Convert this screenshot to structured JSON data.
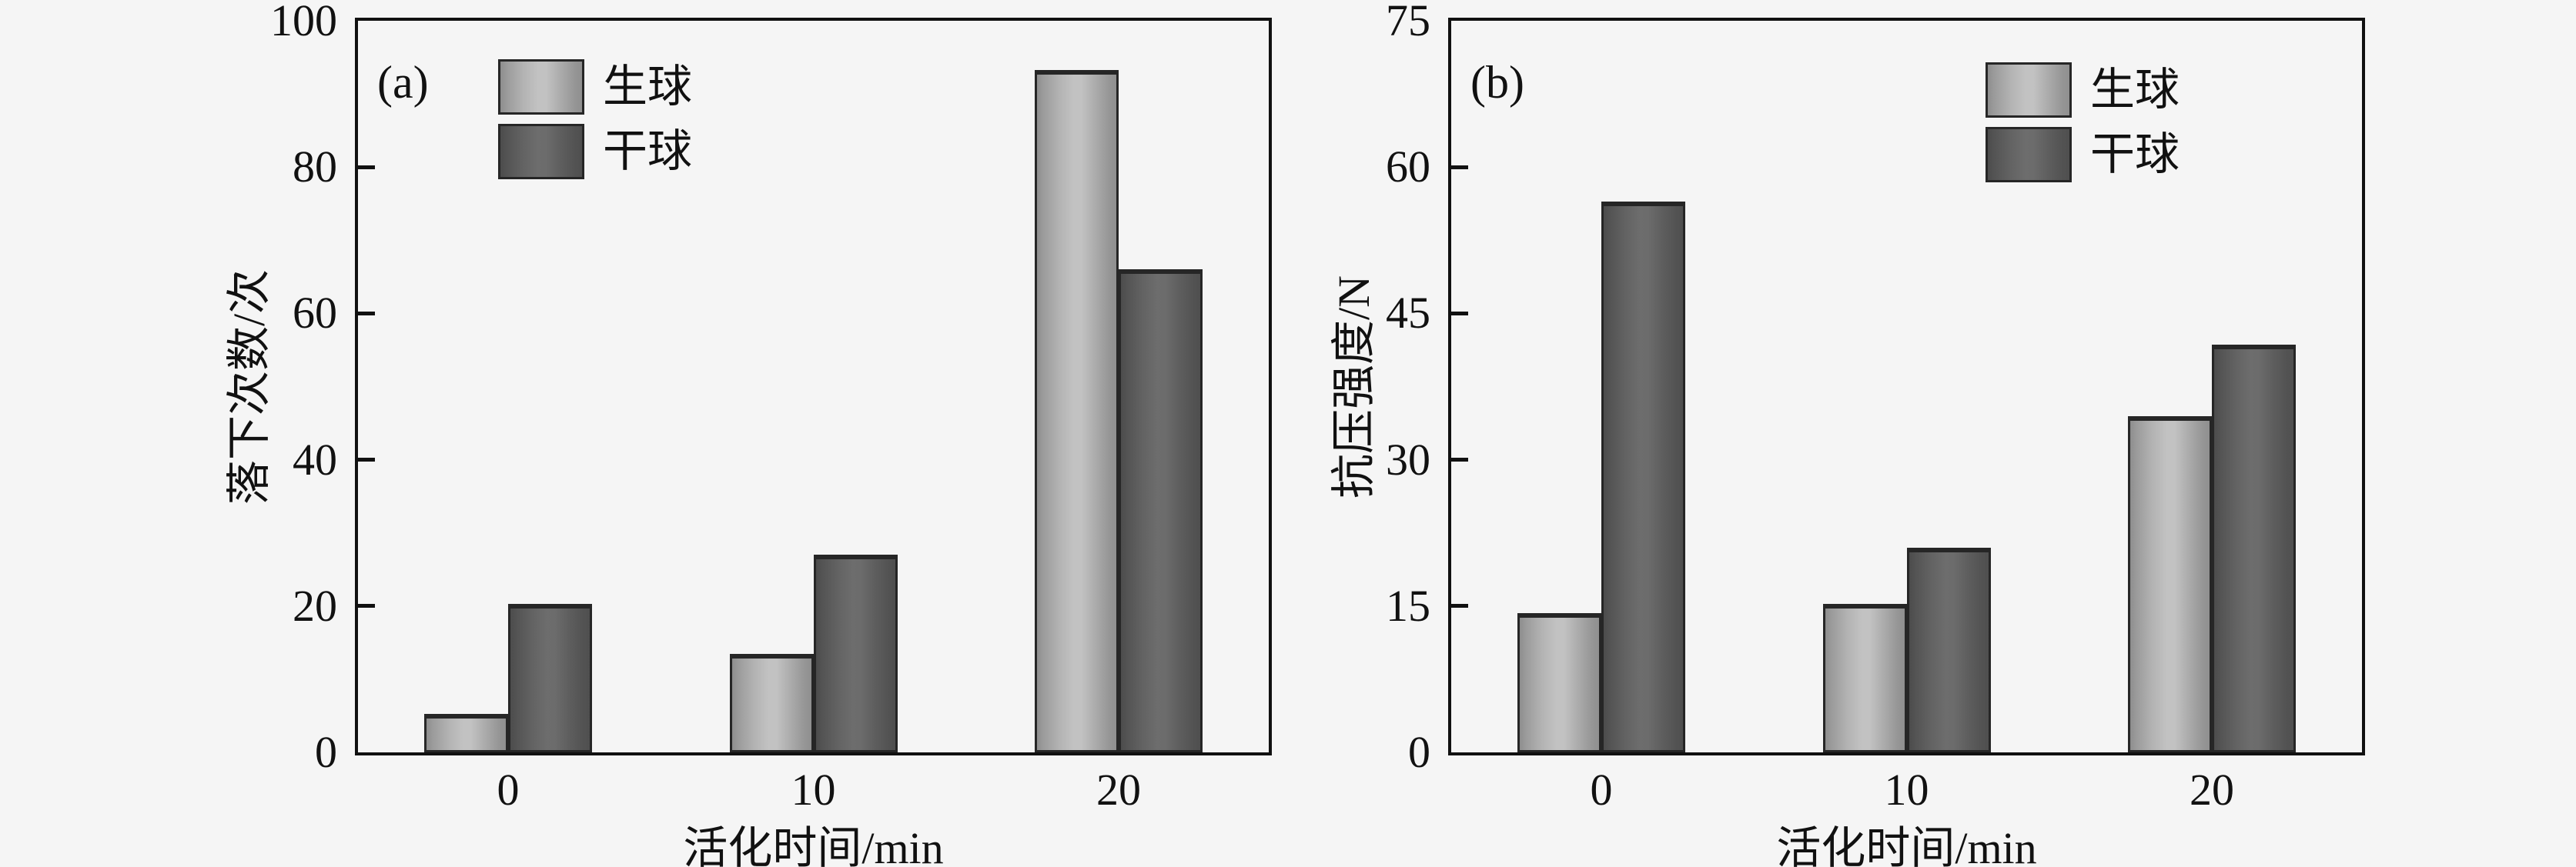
{
  "page": {
    "background": "#f5f5f5",
    "text_color": "#111111"
  },
  "colors": {
    "light_series": "#bdbdbd",
    "dark_series": "#686868",
    "bar_outline": "#262626",
    "axis": "#111111",
    "light_gradient": [
      "#8d8d8d",
      "#9a9a9a",
      "#b3b3b3",
      "#c2c2c2",
      "#c2c2c2",
      "#ababab",
      "#969696",
      "#8f8f8f"
    ],
    "dark_gradient": [
      "#4c4c4c",
      "#535353",
      "#636363",
      "#6d6d6d",
      "#6c6c6c",
      "#5e5e5e",
      "#535353",
      "#4f4f4f"
    ]
  },
  "chart_data": [
    {
      "type": "bar",
      "panel_label": "(a)",
      "categories": [
        "0",
        "10",
        "20"
      ],
      "series": [
        {
          "name": "生球",
          "values": [
            5.3,
            13.5,
            93.3
          ],
          "color_key": "light_series"
        },
        {
          "name": "干球",
          "values": [
            20.3,
            27,
            66
          ],
          "color_key": "dark_series"
        }
      ],
      "xlabel": "活化时间/min",
      "ylabel": "落下次数/次",
      "ylim": [
        0,
        100
      ],
      "yticks": [
        0,
        20,
        40,
        60,
        80,
        100
      ],
      "grid": "off",
      "legend_position": "upper-left-inset"
    },
    {
      "type": "bar",
      "panel_label": "(b)",
      "categories": [
        "0",
        "10",
        "20"
      ],
      "series": [
        {
          "name": "生球",
          "values": [
            14.3,
            15.2,
            34.5
          ],
          "color_key": "light_series"
        },
        {
          "name": "干球",
          "values": [
            56.5,
            21,
            41.8
          ],
          "color_key": "dark_series"
        }
      ],
      "xlabel": "活化时间/min",
      "ylabel": "抗压强度/N",
      "ylim": [
        0,
        75
      ],
      "yticks": [
        0,
        15,
        30,
        45,
        60,
        75
      ],
      "grid": "off",
      "legend_position": "upper-center-inset"
    }
  ]
}
